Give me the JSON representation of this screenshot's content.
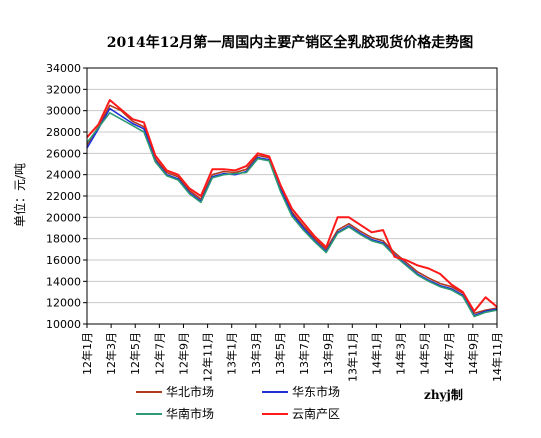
{
  "chart_data": {
    "type": "line",
    "title": "2014年12月第一周国内主要产销区全乳胶现货价格走势图",
    "ylabel": "单位：元/吨",
    "ylim": [
      10000,
      34000
    ],
    "yticks": [
      10000,
      12000,
      14000,
      16000,
      18000,
      20000,
      22000,
      24000,
      26000,
      28000,
      30000,
      32000,
      34000
    ],
    "xlim": [
      0,
      36
    ],
    "x_tick_labels": [
      "12年1月",
      "12年3月",
      "12年5月",
      "12年7月",
      "12年9月",
      "12年11月",
      "13年1月",
      "13年3月",
      "13年5月",
      "13年7月",
      "13年9月",
      "13年11月",
      "14年1月",
      "14年3月",
      "14年5月",
      "14年7月",
      "14年9月",
      "14年11月"
    ],
    "grid": true,
    "legend_position": "bottom",
    "credit": "zhyj制",
    "series": [
      {
        "name": "华北市场",
        "color": "#b03a1e",
        "points": [
          [
            0,
            26800
          ],
          [
            1,
            28500
          ],
          [
            2,
            30500
          ],
          [
            3,
            30000
          ],
          [
            4,
            29000
          ],
          [
            5,
            28500
          ],
          [
            6,
            25500
          ],
          [
            7,
            24200
          ],
          [
            8,
            23800
          ],
          [
            9,
            22500
          ],
          [
            10,
            21700
          ],
          [
            11,
            24000
          ],
          [
            12,
            24300
          ],
          [
            13,
            24200
          ],
          [
            14,
            24500
          ],
          [
            15,
            25800
          ],
          [
            16,
            25600
          ],
          [
            17,
            22800
          ],
          [
            18,
            20500
          ],
          [
            19,
            19200
          ],
          [
            20,
            18000
          ],
          [
            21,
            17000
          ],
          [
            22,
            18800
          ],
          [
            23,
            19400
          ],
          [
            24,
            18700
          ],
          [
            25,
            18100
          ],
          [
            26,
            17800
          ],
          [
            27,
            16700
          ],
          [
            28,
            15800
          ],
          [
            29,
            14900
          ],
          [
            30,
            14300
          ],
          [
            31,
            13800
          ],
          [
            32,
            13500
          ],
          [
            33,
            12900
          ],
          [
            34,
            11000
          ],
          [
            35,
            11300
          ],
          [
            36,
            11500
          ]
        ]
      },
      {
        "name": "华东市场",
        "color": "#1e2fd8",
        "points": [
          [
            0,
            26500
          ],
          [
            1,
            28300
          ],
          [
            2,
            30200
          ],
          [
            3,
            29500
          ],
          [
            4,
            28800
          ],
          [
            5,
            28300
          ],
          [
            6,
            25300
          ],
          [
            7,
            24000
          ],
          [
            8,
            23600
          ],
          [
            9,
            22300
          ],
          [
            10,
            21500
          ],
          [
            11,
            23800
          ],
          [
            12,
            24100
          ],
          [
            13,
            24000
          ],
          [
            14,
            24300
          ],
          [
            15,
            25600
          ],
          [
            16,
            25400
          ],
          [
            17,
            22600
          ],
          [
            18,
            20300
          ],
          [
            19,
            19000
          ],
          [
            20,
            17800
          ],
          [
            21,
            16800
          ],
          [
            22,
            18600
          ],
          [
            23,
            19200
          ],
          [
            24,
            18500
          ],
          [
            25,
            17900
          ],
          [
            26,
            17600
          ],
          [
            27,
            16500
          ],
          [
            28,
            15600
          ],
          [
            29,
            14700
          ],
          [
            30,
            14100
          ],
          [
            31,
            13600
          ],
          [
            32,
            13300
          ],
          [
            33,
            12700
          ],
          [
            34,
            10800
          ],
          [
            35,
            11200
          ],
          [
            36,
            11400
          ]
        ]
      },
      {
        "name": "华南市场",
        "color": "#2e9a74",
        "points": [
          [
            0,
            27000
          ],
          [
            1,
            28400
          ],
          [
            2,
            29800
          ],
          [
            3,
            29200
          ],
          [
            4,
            28600
          ],
          [
            5,
            28000
          ],
          [
            6,
            25200
          ],
          [
            7,
            23900
          ],
          [
            8,
            23500
          ],
          [
            9,
            22200
          ],
          [
            10,
            21400
          ],
          [
            11,
            23700
          ],
          [
            12,
            24000
          ],
          [
            13,
            24100
          ],
          [
            14,
            24200
          ],
          [
            15,
            25500
          ],
          [
            16,
            25300
          ],
          [
            17,
            22400
          ],
          [
            18,
            20100
          ],
          [
            19,
            18800
          ],
          [
            20,
            17700
          ],
          [
            21,
            16700
          ],
          [
            22,
            18500
          ],
          [
            23,
            19100
          ],
          [
            24,
            18400
          ],
          [
            25,
            17800
          ],
          [
            26,
            17500
          ],
          [
            27,
            16400
          ],
          [
            28,
            15500
          ],
          [
            29,
            14600
          ],
          [
            30,
            14000
          ],
          [
            31,
            13500
          ],
          [
            32,
            13200
          ],
          [
            33,
            12600
          ],
          [
            34,
            10700
          ],
          [
            35,
            11100
          ],
          [
            36,
            11300
          ]
        ]
      },
      {
        "name": "云南产区",
        "color": "#ff1a1a",
        "points": [
          [
            0,
            27500
          ],
          [
            1,
            28700
          ],
          [
            2,
            31000
          ],
          [
            3,
            30100
          ],
          [
            4,
            29200
          ],
          [
            5,
            28900
          ],
          [
            6,
            25800
          ],
          [
            7,
            24400
          ],
          [
            8,
            24000
          ],
          [
            9,
            22700
          ],
          [
            10,
            22000
          ],
          [
            11,
            24500
          ],
          [
            12,
            24500
          ],
          [
            13,
            24400
          ],
          [
            14,
            24800
          ],
          [
            15,
            26000
          ],
          [
            16,
            25700
          ],
          [
            17,
            23000
          ],
          [
            18,
            20800
          ],
          [
            19,
            19500
          ],
          [
            20,
            18200
          ],
          [
            21,
            17200
          ],
          [
            22,
            20000
          ],
          [
            23,
            20000
          ],
          [
            24,
            19300
          ],
          [
            25,
            18600
          ],
          [
            26,
            18800
          ],
          [
            27,
            16300
          ],
          [
            28,
            16000
          ],
          [
            29,
            15500
          ],
          [
            30,
            15200
          ],
          [
            31,
            14700
          ],
          [
            32,
            13700
          ],
          [
            33,
            13000
          ],
          [
            34,
            11200
          ],
          [
            35,
            12500
          ],
          [
            36,
            11600
          ]
        ]
      }
    ]
  }
}
